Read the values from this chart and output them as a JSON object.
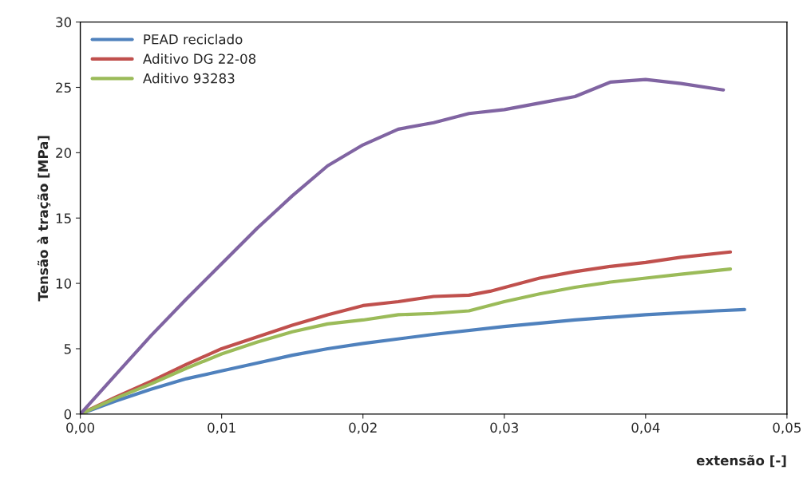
{
  "chart_data": {
    "type": "line",
    "xlabel": "extensão [-]",
    "ylabel": "Tensão à tração [MPa]",
    "xlim": [
      0,
      0.05
    ],
    "ylim": [
      0,
      30
    ],
    "xticks": [
      {
        "value": 0,
        "label": "0,00"
      },
      {
        "value": 0.01,
        "label": "0,01"
      },
      {
        "value": 0.02,
        "label": "0,02"
      },
      {
        "value": 0.03,
        "label": "0,03"
      },
      {
        "value": 0.04,
        "label": "0,04"
      },
      {
        "value": 0.05,
        "label": "0,05"
      }
    ],
    "yticks": [
      0,
      5,
      10,
      15,
      20,
      25,
      30
    ],
    "grid": false,
    "legend": "top left",
    "marker": "none",
    "line_style": "solid",
    "series": [
      {
        "name": "PEAD reciclado",
        "color": "#4f81bd",
        "x": [
          0,
          0.0025,
          0.005,
          0.0075,
          0.01,
          0.0125,
          0.015,
          0.0175,
          0.02,
          0.025,
          0.03,
          0.035,
          0.04,
          0.045,
          0.047
        ],
        "values": [
          0,
          1.0,
          1.9,
          2.7,
          3.3,
          3.9,
          4.5,
          5.0,
          5.4,
          6.1,
          6.7,
          7.2,
          7.6,
          7.9,
          8.0
        ]
      },
      {
        "name": "Aditivo DG 22-08",
        "color": "#c0504d",
        "x": [
          0,
          0.0025,
          0.005,
          0.0075,
          0.01,
          0.0125,
          0.015,
          0.0175,
          0.02,
          0.0225,
          0.025,
          0.0275,
          0.029,
          0.0325,
          0.035,
          0.0375,
          0.04,
          0.0425,
          0.046
        ],
        "values": [
          0,
          1.3,
          2.5,
          3.8,
          5.0,
          5.9,
          6.8,
          7.6,
          8.3,
          8.6,
          9.0,
          9.1,
          9.4,
          10.4,
          10.9,
          11.3,
          11.6,
          12.0,
          12.4
        ]
      },
      {
        "name": "Aditivo 93283",
        "color": "#9bbb59",
        "x": [
          0,
          0.0025,
          0.005,
          0.0075,
          0.01,
          0.0125,
          0.015,
          0.0175,
          0.02,
          0.0225,
          0.025,
          0.0275,
          0.03,
          0.0325,
          0.035,
          0.0375,
          0.04,
          0.0425,
          0.046
        ],
        "values": [
          0,
          1.2,
          2.3,
          3.5,
          4.6,
          5.5,
          6.3,
          6.9,
          7.2,
          7.6,
          7.7,
          7.9,
          8.6,
          9.2,
          9.7,
          10.1,
          10.4,
          10.7,
          11.1
        ]
      },
      {
        "color": "#8064a2",
        "x": [
          0,
          0.0025,
          0.005,
          0.0075,
          0.01,
          0.0125,
          0.015,
          0.0175,
          0.02,
          0.0225,
          0.025,
          0.0275,
          0.03,
          0.0325,
          0.035,
          0.0375,
          0.04,
          0.0425,
          0.0455
        ],
        "values": [
          0,
          3.0,
          6.0,
          8.8,
          11.5,
          14.2,
          16.7,
          19.0,
          20.6,
          21.8,
          22.3,
          23.0,
          23.3,
          23.8,
          24.3,
          25.4,
          25.6,
          25.3,
          24.8
        ]
      }
    ]
  }
}
